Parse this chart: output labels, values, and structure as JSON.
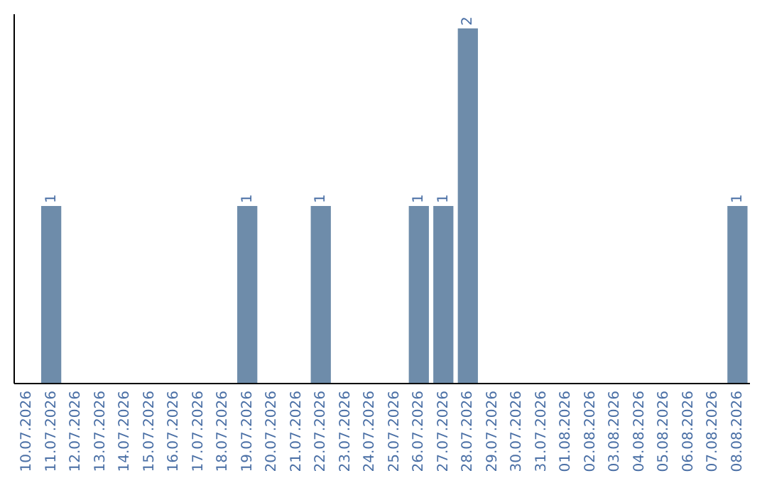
{
  "chart_data": {
    "type": "bar",
    "categories": [
      "10.07.2026",
      "11.07.2026",
      "12.07.2026",
      "13.07.2026",
      "14.07.2026",
      "15.07.2026",
      "16.07.2026",
      "17.07.2026",
      "18.07.2026",
      "19.07.2026",
      "20.07.2026",
      "21.07.2026",
      "22.07.2026",
      "23.07.2026",
      "24.07.2026",
      "25.07.2026",
      "26.07.2026",
      "27.07.2026",
      "28.07.2026",
      "29.07.2026",
      "30.07.2026",
      "31.07.2026",
      "01.08.2026",
      "02.08.2026",
      "03.08.2026",
      "04.08.2026",
      "05.08.2026",
      "06.08.2026",
      "07.08.2026",
      "08.08.2026"
    ],
    "values": [
      0,
      1,
      0,
      0,
      0,
      0,
      0,
      0,
      0,
      1,
      0,
      0,
      1,
      0,
      0,
      0,
      1,
      1,
      2,
      0,
      0,
      0,
      0,
      0,
      0,
      0,
      0,
      0,
      0,
      1
    ],
    "value_labels": [
      null,
      "1",
      null,
      null,
      null,
      null,
      null,
      null,
      null,
      "1",
      null,
      null,
      "1",
      null,
      null,
      null,
      "1",
      "1",
      "2",
      null,
      null,
      null,
      null,
      null,
      null,
      null,
      null,
      null,
      null,
      "1"
    ],
    "color": "#6e8caa",
    "ylim": [
      0,
      2
    ],
    "tick_labels": "x"
  }
}
